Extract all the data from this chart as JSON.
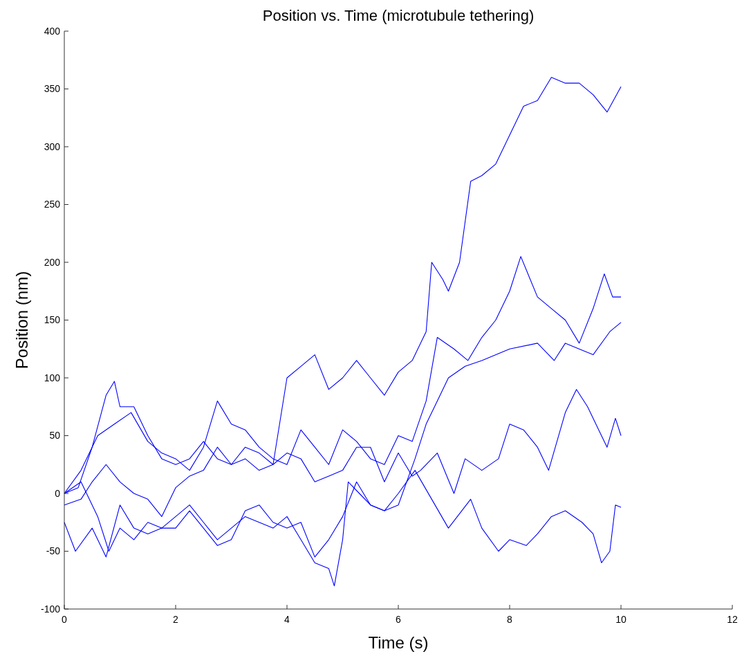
{
  "chart_data": {
    "type": "line",
    "title": "Position vs. Time (microtubule tethering)",
    "xlabel": "Time (s)",
    "ylabel": "Position (nm)",
    "xlim": [
      0,
      12
    ],
    "xticks": [
      0,
      2,
      4,
      6,
      8,
      10,
      12
    ],
    "ylim": [
      -100,
      400
    ],
    "yticks": [
      -100,
      -50,
      0,
      50,
      100,
      150,
      200,
      250,
      300,
      350,
      400
    ],
    "grid": false,
    "marker": "none",
    "line_style": "solid",
    "series": [
      {
        "color": "#0000ff",
        "x": [
          0,
          0.25,
          0.5,
          0.75,
          0.9,
          1.0,
          1.25,
          1.5,
          1.75,
          2.0,
          2.25,
          2.5,
          2.75,
          3.0,
          3.25,
          3.5,
          3.75,
          4.0,
          4.25,
          4.5,
          4.75,
          5.0,
          5.25,
          5.5,
          5.75,
          6.0,
          6.25,
          6.5,
          6.6,
          6.8,
          6.9,
          7.1,
          7.3,
          7.5,
          7.75,
          8.0,
          8.25,
          8.5,
          8.75,
          9.0,
          9.25,
          9.5,
          9.75,
          10
        ],
        "values": [
          0,
          5,
          40,
          85,
          97,
          75,
          75,
          50,
          30,
          25,
          30,
          45,
          30,
          25,
          30,
          20,
          25,
          100,
          110,
          120,
          90,
          100,
          115,
          100,
          85,
          105,
          115,
          140,
          200,
          185,
          175,
          200,
          270,
          275,
          285,
          310,
          335,
          340,
          360,
          355,
          355,
          345,
          330,
          352
        ]
      },
      {
        "color": "#0000ff",
        "x": [
          0,
          0.3,
          0.6,
          0.9,
          1.2,
          1.5,
          1.75,
          2.0,
          2.25,
          2.5,
          2.75,
          3.0,
          3.25,
          3.5,
          3.75,
          4.0,
          4.25,
          4.5,
          4.75,
          5.0,
          5.25,
          5.5,
          5.75,
          6.0,
          6.25,
          6.5,
          6.7,
          7.0,
          7.25,
          7.5,
          7.75,
          8.0,
          8.2,
          8.5,
          8.75,
          9.0,
          9.25,
          9.5,
          9.7,
          9.85,
          10
        ],
        "values": [
          0,
          20,
          50,
          60,
          70,
          45,
          35,
          30,
          20,
          40,
          80,
          60,
          55,
          40,
          30,
          25,
          55,
          40,
          25,
          55,
          45,
          30,
          25,
          50,
          45,
          80,
          135,
          125,
          115,
          135,
          150,
          175,
          205,
          170,
          160,
          150,
          130,
          160,
          190,
          170,
          170
        ]
      },
      {
        "color": "#0000ff",
        "x": [
          0,
          0.3,
          0.6,
          0.8,
          1.0,
          1.25,
          1.5,
          1.75,
          2.0,
          2.25,
          2.5,
          2.75,
          3.0,
          3.25,
          3.5,
          3.75,
          4.0,
          4.25,
          4.5,
          4.75,
          4.85,
          5.0,
          5.1,
          5.3,
          5.5,
          5.75,
          6.0,
          6.3,
          6.5,
          6.7,
          6.9,
          7.2,
          7.5,
          8.0,
          8.5,
          8.8,
          9.0,
          9.5,
          9.8,
          10
        ],
        "values": [
          0,
          10,
          -20,
          -50,
          -30,
          -40,
          -25,
          -30,
          -20,
          -10,
          -25,
          -40,
          -30,
          -20,
          -25,
          -30,
          -20,
          -40,
          -60,
          -65,
          -80,
          -40,
          10,
          0,
          -10,
          -15,
          -10,
          30,
          60,
          80,
          100,
          110,
          115,
          125,
          130,
          115,
          130,
          120,
          140,
          148
        ]
      },
      {
        "color": "#0000ff",
        "x": [
          0,
          0.3,
          0.5,
          0.75,
          1.0,
          1.25,
          1.5,
          1.75,
          2.0,
          2.25,
          2.5,
          2.75,
          3.0,
          3.25,
          3.5,
          3.75,
          4.0,
          4.25,
          4.5,
          4.75,
          5.0,
          5.25,
          5.5,
          5.75,
          6.0,
          6.25,
          6.4,
          6.7,
          7.0,
          7.2,
          7.5,
          7.8,
          8.0,
          8.25,
          8.5,
          8.7,
          9.0,
          9.2,
          9.4,
          9.6,
          9.75,
          9.9,
          10
        ],
        "values": [
          -10,
          -5,
          10,
          25,
          10,
          0,
          -5,
          -20,
          5,
          15,
          20,
          40,
          25,
          40,
          35,
          25,
          35,
          30,
          10,
          15,
          20,
          40,
          40,
          10,
          35,
          15,
          20,
          35,
          0,
          30,
          20,
          30,
          60,
          55,
          40,
          20,
          70,
          90,
          75,
          55,
          40,
          65,
          50
        ]
      },
      {
        "color": "#0000ff",
        "x": [
          0,
          0.2,
          0.5,
          0.75,
          1.0,
          1.25,
          1.5,
          1.75,
          2.0,
          2.25,
          2.5,
          2.75,
          3.0,
          3.25,
          3.5,
          3.75,
          4.0,
          4.25,
          4.5,
          4.75,
          5.0,
          5.25,
          5.5,
          5.75,
          6.0,
          6.3,
          6.6,
          6.9,
          7.3,
          7.5,
          7.8,
          8.0,
          8.3,
          8.5,
          8.75,
          9.0,
          9.3,
          9.5,
          9.65,
          9.8,
          9.9,
          10
        ],
        "values": [
          -25,
          -50,
          -30,
          -55,
          -10,
          -30,
          -35,
          -30,
          -30,
          -15,
          -30,
          -45,
          -40,
          -15,
          -10,
          -25,
          -30,
          -25,
          -55,
          -40,
          -20,
          10,
          -10,
          -15,
          0,
          20,
          -5,
          -30,
          -5,
          -30,
          -50,
          -40,
          -45,
          -35,
          -20,
          -15,
          -25,
          -35,
          -60,
          -50,
          -10,
          -12
        ]
      }
    ]
  }
}
